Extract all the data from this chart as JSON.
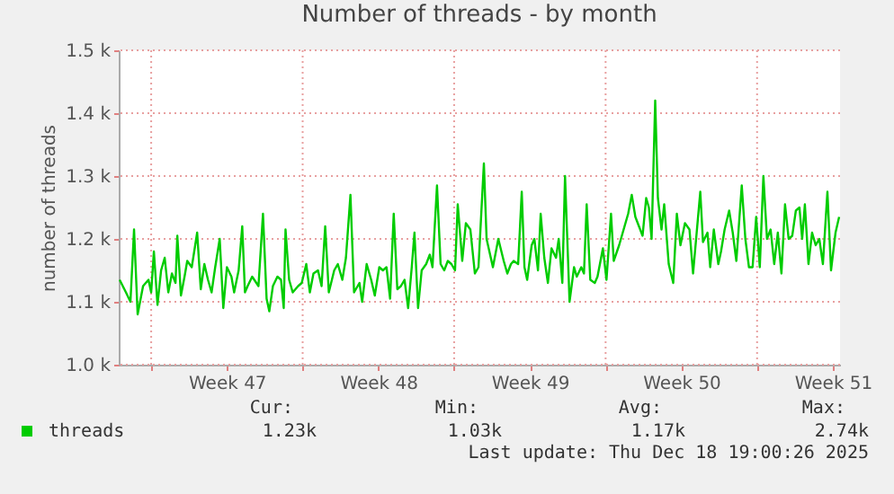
{
  "chart_data": {
    "type": "line",
    "title": "Number of threads - by month",
    "ylabel": "number of threads",
    "xlim": [
      "2025-11-15T12:00",
      "2025-12-18T20:00"
    ],
    "xticks": [
      {
        "value": "2025-11-17T00:00",
        "label": null
      },
      {
        "value": "2025-11-20T12:00",
        "label": "Week 47"
      },
      {
        "value": "2025-11-24T00:00",
        "label": null
      },
      {
        "value": "2025-11-27T12:00",
        "label": "Week 48"
      },
      {
        "value": "2025-12-01T00:00",
        "label": null
      },
      {
        "value": "2025-12-04T12:00",
        "label": "Week 49"
      },
      {
        "value": "2025-12-08T00:00",
        "label": null
      },
      {
        "value": "2025-12-11T12:00",
        "label": "Week 50"
      },
      {
        "value": "2025-12-15T00:00",
        "label": null
      },
      {
        "value": "2025-12-18T12:00",
        "label": "Week 51"
      }
    ],
    "ylim": [
      1000,
      1500
    ],
    "yticks": [
      {
        "value": 1000,
        "label": "1.0 k"
      },
      {
        "value": 1100,
        "label": "1.1 k"
      },
      {
        "value": 1200,
        "label": "1.2 k"
      },
      {
        "value": 1300,
        "label": "1.3 k"
      },
      {
        "value": 1400,
        "label": "1.4 k"
      },
      {
        "value": 1500,
        "label": "1.5 k"
      }
    ],
    "grid": true,
    "legend": "bottom left",
    "annotations": [
      "Cur:",
      "1.23k",
      "Min:",
      "1.03k",
      "Avg:",
      "1.17k",
      "Max:",
      "2.74k",
      "Last update: Thu Dec 18 19:00:26 2025"
    ],
    "series": [
      {
        "name": "threads",
        "color": "#00cc00",
        "x": [
          "2025-11-15T13:00",
          "2025-11-15T20:00",
          "2025-11-16T01:00",
          "2025-11-16T05:00",
          "2025-11-16T09:00",
          "2025-11-16T15:00",
          "2025-11-16T21:00",
          "2025-11-17T00:00",
          "2025-11-17T03:00",
          "2025-11-17T07:00",
          "2025-11-17T11:00",
          "2025-11-17T15:00",
          "2025-11-17T19:00",
          "2025-11-17T23:00",
          "2025-11-18T03:00",
          "2025-11-18T05:00",
          "2025-11-18T09:00",
          "2025-11-18T13:00",
          "2025-11-18T16:00",
          "2025-11-18T21:00",
          "2025-11-19T03:00",
          "2025-11-19T07:00",
          "2025-11-19T11:00",
          "2025-11-19T15:00",
          "2025-11-19T19:00",
          "2025-11-19T23:00",
          "2025-11-20T04:00",
          "2025-11-20T08:00",
          "2025-11-20T12:00",
          "2025-11-20T17:00",
          "2025-11-20T20:00",
          "2025-11-21T01:00",
          "2025-11-21T05:00",
          "2025-11-21T08:00",
          "2025-11-21T11:00",
          "2025-11-21T16:00",
          "2025-11-21T23:00",
          "2025-11-22T04:00",
          "2025-11-22T08:00",
          "2025-11-22T11:00",
          "2025-11-22T15:00",
          "2025-11-22T20:00",
          "2025-11-23T00:00",
          "2025-11-23T03:00",
          "2025-11-23T05:00",
          "2025-11-23T09:00",
          "2025-11-23T13:00",
          "2025-11-23T19:00",
          "2025-11-23T23:00",
          "2025-11-24T04:00",
          "2025-11-24T08:00",
          "2025-11-24T12:00",
          "2025-11-24T17:00",
          "2025-11-24T21:00",
          "2025-11-25T01:00",
          "2025-11-25T05:00",
          "2025-11-25T11:00",
          "2025-11-25T15:00",
          "2025-11-25T20:00",
          "2025-11-26T00:00",
          "2025-11-26T05:00",
          "2025-11-26T09:00",
          "2025-11-26T15:00",
          "2025-11-26T18:00",
          "2025-11-26T23:00",
          "2025-11-27T04:00",
          "2025-11-27T08:00",
          "2025-11-27T13:00",
          "2025-11-27T17:00",
          "2025-11-27T21:00",
          "2025-11-28T01:00",
          "2025-11-28T05:00",
          "2025-11-28T09:00",
          "2025-11-28T13:00",
          "2025-11-28T17:00",
          "2025-11-28T21:00",
          "2025-11-29T01:00",
          "2025-11-29T04:00",
          "2025-11-29T08:00",
          "2025-11-29T12:00",
          "2025-11-29T17:00",
          "2025-11-29T21:00",
          "2025-11-30T00:00",
          "2025-11-30T05:00",
          "2025-11-30T09:00",
          "2025-11-30T13:00",
          "2025-11-30T17:00",
          "2025-11-30T21:00",
          "2025-12-01T01:00",
          "2025-12-01T04:00",
          "2025-12-01T09:00",
          "2025-12-01T13:00",
          "2025-12-01T18:00",
          "2025-12-01T23:00",
          "2025-12-02T03:00",
          "2025-12-02T09:00",
          "2025-12-02T12:00",
          "2025-12-02T19:00",
          "2025-12-03T01:00",
          "2025-12-03T07:00",
          "2025-12-03T11:00",
          "2025-12-03T15:00",
          "2025-12-03T18:00",
          "2025-12-03T23:00",
          "2025-12-04T03:00",
          "2025-12-04T06:00",
          "2025-12-04T09:00",
          "2025-12-04T14:00",
          "2025-12-04T17:00",
          "2025-12-04T21:00",
          "2025-12-05T00:00",
          "2025-12-05T04:00",
          "2025-12-05T08:00",
          "2025-12-05T12:00",
          "2025-12-05T17:00",
          "2025-12-05T20:00",
          "2025-12-06T00:00",
          "2025-12-06T03:00",
          "2025-12-06T08:00",
          "2025-12-06T13:00",
          "2025-12-06T16:00",
          "2025-12-06T21:00",
          "2025-12-07T00:00",
          "2025-12-07T03:00",
          "2025-12-07T07:00",
          "2025-12-07T12:00",
          "2025-12-07T15:00",
          "2025-12-07T21:00",
          "2025-12-08T01:00",
          "2025-12-08T06:00",
          "2025-12-08T09:00",
          "2025-12-08T15:00",
          "2025-12-08T19:00",
          "2025-12-09T01:00",
          "2025-12-09T05:00",
          "2025-12-09T09:00",
          "2025-12-09T13:00",
          "2025-12-09T17:00",
          "2025-12-09T21:00",
          "2025-12-10T00:00",
          "2025-12-10T03:00",
          "2025-12-10T07:00",
          "2025-12-10T10:00",
          "2025-12-10T14:00",
          "2025-12-10T17:00",
          "2025-12-10T22:00",
          "2025-12-11T03:00",
          "2025-12-11T07:00",
          "2025-12-11T11:00",
          "2025-12-11T16:00",
          "2025-12-11T21:00",
          "2025-12-12T01:00",
          "2025-12-12T05:00",
          "2025-12-12T09:00",
          "2025-12-12T12:00",
          "2025-12-12T17:00",
          "2025-12-12T20:00",
          "2025-12-13T00:00",
          "2025-12-13T05:00",
          "2025-12-13T08:00",
          "2025-12-13T12:00",
          "2025-12-13T17:00",
          "2025-12-13T21:00",
          "2025-12-14T01:00",
          "2025-12-14T07:00",
          "2025-12-14T11:00",
          "2025-12-14T15:00",
          "2025-12-14T19:00",
          "2025-12-14T23:00",
          "2025-12-15T03:00",
          "2025-12-15T07:00",
          "2025-12-15T11:00",
          "2025-12-15T15:00",
          "2025-12-15T19:00",
          "2025-12-15T23:00",
          "2025-12-16T03:00",
          "2025-12-16T07:00",
          "2025-12-16T11:00",
          "2025-12-16T15:00",
          "2025-12-16T19:00",
          "2025-12-16T23:00",
          "2025-12-17T02:00",
          "2025-12-17T05:00",
          "2025-12-17T09:00",
          "2025-12-17T13:00",
          "2025-12-17T17:00",
          "2025-12-17T21:00",
          "2025-12-18T01:00",
          "2025-12-18T06:00",
          "2025-12-18T10:00",
          "2025-12-18T15:00",
          "2025-12-18T19:00"
        ],
        "values": [
          1135,
          1115,
          1100,
          1215,
          1080,
          1125,
          1135,
          1115,
          1180,
          1095,
          1150,
          1170,
          1115,
          1145,
          1130,
          1205,
          1110,
          1140,
          1165,
          1155,
          1210,
          1120,
          1160,
          1135,
          1115,
          1155,
          1200,
          1090,
          1155,
          1140,
          1115,
          1150,
          1220,
          1115,
          1125,
          1140,
          1125,
          1240,
          1105,
          1085,
          1125,
          1140,
          1135,
          1090,
          1215,
          1135,
          1115,
          1125,
          1130,
          1160,
          1115,
          1145,
          1150,
          1125,
          1220,
          1115,
          1150,
          1160,
          1135,
          1170,
          1270,
          1115,
          1130,
          1100,
          1160,
          1135,
          1110,
          1155,
          1150,
          1155,
          1105,
          1240,
          1120,
          1125,
          1135,
          1090,
          1155,
          1210,
          1090,
          1150,
          1160,
          1175,
          1155,
          1285,
          1160,
          1150,
          1165,
          1160,
          1150,
          1255,
          1165,
          1225,
          1215,
          1145,
          1155,
          1320,
          1200,
          1155,
          1200,
          1165,
          1145,
          1160,
          1165,
          1160,
          1275,
          1155,
          1135,
          1190,
          1200,
          1150,
          1240,
          1170,
          1130,
          1185,
          1170,
          1200,
          1130,
          1300,
          1100,
          1155,
          1140,
          1155,
          1145,
          1255,
          1135,
          1130,
          1140,
          1185,
          1135,
          1240,
          1165,
          1190,
          1210,
          1240,
          1270,
          1235,
          1220,
          1205,
          1265,
          1250,
          1200,
          1420,
          1265,
          1215,
          1255,
          1160,
          1130,
          1240,
          1190,
          1225,
          1215,
          1145,
          1210,
          1275,
          1195,
          1210,
          1155,
          1215,
          1160,
          1180,
          1215,
          1245,
          1210,
          1165,
          1285,
          1200,
          1155,
          1155,
          1235,
          1155,
          1300,
          1200,
          1215,
          1160,
          1210,
          1145,
          1255,
          1200,
          1205,
          1245,
          1250,
          1200,
          1255,
          1160,
          1210,
          1190,
          1200,
          1160,
          1275,
          1150,
          1210,
          1235
        ]
      }
    ]
  }
}
